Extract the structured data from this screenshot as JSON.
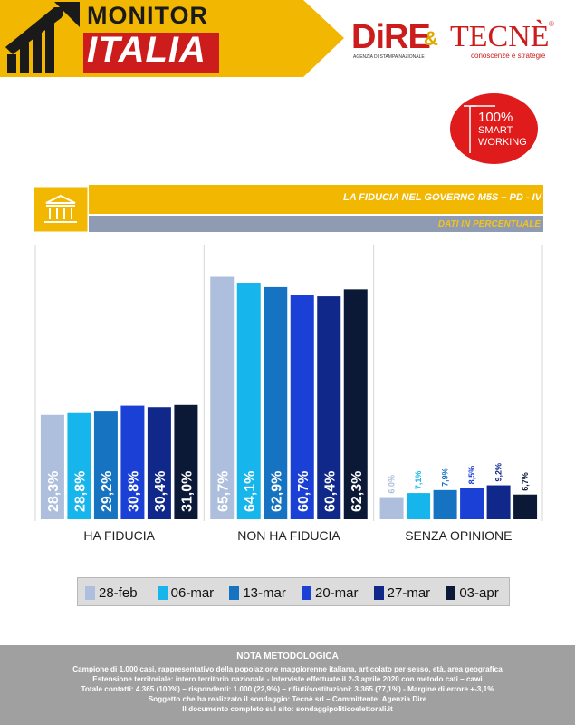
{
  "header": {
    "brand_title": "MONITOR",
    "brand_sub": "ITALIA",
    "dire": "DiRE",
    "dire_sub": "AGENZIA DI STAMPA NAZIONALE",
    "amp": "&",
    "tecne": "TECNÈ",
    "tecne_reg": "®",
    "tecne_sub": "conoscenze e strategie",
    "badge": {
      "line1": "100%",
      "line2": "SMART",
      "line3": "WORKING"
    },
    "colors": {
      "yellow": "#f2b700",
      "red": "#e01b1b",
      "slate": "#8f9bb3"
    }
  },
  "title_bar": {
    "title": "LA FIDUCIA NEL GOVERNO M5S – PD - IV",
    "subtitle": "DATI IN PERCENTUALE",
    "icon": "parliament-building-icon"
  },
  "chart_data": {
    "type": "bar",
    "categories": [
      "HA FIDUCIA",
      "NON HA FIDUCIA",
      "SENZA OPINIONE"
    ],
    "series": [
      {
        "name": "28-feb",
        "color": "#adbfdc",
        "values": [
          28.3,
          65.7,
          6.0
        ],
        "labels": [
          "28,3%",
          "65,7%",
          "6,0%"
        ]
      },
      {
        "name": "06-mar",
        "color": "#16b6ec",
        "values": [
          28.8,
          64.1,
          7.1
        ],
        "labels": [
          "28,8%",
          "64,1%",
          "7,1%"
        ]
      },
      {
        "name": "13-mar",
        "color": "#1573c1",
        "values": [
          29.2,
          62.9,
          7.9
        ],
        "labels": [
          "29,2%",
          "62,9%",
          "7,9%"
        ]
      },
      {
        "name": "20-mar",
        "color": "#1b40d6",
        "values": [
          30.8,
          60.7,
          8.5
        ],
        "labels": [
          "30,8%",
          "60,7%",
          "8,5%"
        ]
      },
      {
        "name": "27-mar",
        "color": "#10288a",
        "values": [
          30.4,
          60.4,
          9.2
        ],
        "labels": [
          "30,4%",
          "60,4%",
          "9,2%"
        ]
      },
      {
        "name": "03-apr",
        "color": "#0b1836",
        "values": [
          31.0,
          62.3,
          6.7
        ],
        "labels": [
          "31,0%",
          "62,3%",
          "6,7%"
        ]
      }
    ],
    "ylim": [
      0,
      70
    ],
    "grid": false,
    "legend": "bottom"
  },
  "footer": {
    "heading": "NOTA METODOLOGICA",
    "lines": [
      "Campione di 1.000 casi, rappresentativo della popolazione maggiorenne italiana, articolato per sesso, età, area geografica",
      "Estensione territoriale: intero territorio nazionale  - Interviste effettuate il 2-3 aprile 2020 con metodo cati – cawi",
      "Totale contatti: 4.365 (100%) – rispondenti: 1.000 (22,9%) – rifiuti/sostituzioni: 3.365 (77,1%) - Margine di errore +-3,1%",
      "Soggetto che ha realizzato il sondaggio: Tecnè srl – Committente: Agenzia Dire",
      "Il documento completo sul sito: sondaggipoliticoelettorali.it"
    ]
  }
}
